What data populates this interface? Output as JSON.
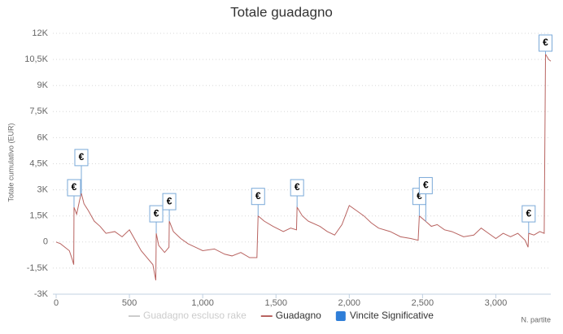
{
  "chart_data": {
    "type": "line",
    "title": "Totale guadagno",
    "y_axis_label": "Totale cumulativo (EUR)",
    "x_axis_label": "N. partite",
    "xlim": [
      0,
      3375
    ],
    "ylim": [
      -3000,
      12000
    ],
    "xticks": [
      0,
      500,
      {
        "value": 1000,
        "label": "1,000"
      },
      {
        "value": 1500,
        "label": "1,500"
      },
      {
        "value": 2000,
        "label": "2,000"
      },
      {
        "value": 2500,
        "label": "2,500"
      },
      {
        "value": 3000,
        "label": "3,000"
      }
    ],
    "yticks": [
      {
        "value": -3000,
        "label": "-3K"
      },
      {
        "value": -1500,
        "label": "-1,5K"
      },
      0,
      {
        "value": 1500,
        "label": "1,5K"
      },
      {
        "value": 3000,
        "label": "3K"
      },
      {
        "value": 4500,
        "label": "4,5K"
      },
      {
        "value": 6000,
        "label": "6K"
      },
      {
        "value": 7500,
        "label": "7,5K"
      },
      {
        "value": 9000,
        "label": "9K"
      },
      {
        "value": 10500,
        "label": "10,5K"
      },
      {
        "value": 12000,
        "label": "12K"
      }
    ],
    "grid": true,
    "series": [
      {
        "name": "Guadagno escluso rake",
        "color": "#cccccc",
        "visible": false,
        "x": [],
        "values": []
      },
      {
        "name": "Guadagno",
        "color": "#b86360",
        "visible": true,
        "x": [
          0,
          30,
          60,
          90,
          110,
          120,
          122,
          140,
          160,
          172,
          190,
          220,
          260,
          300,
          340,
          400,
          450,
          500,
          540,
          580,
          620,
          660,
          680,
          683,
          700,
          740,
          770,
          772,
          800,
          850,
          900,
          950,
          1000,
          1080,
          1150,
          1200,
          1260,
          1320,
          1370,
          1378,
          1420,
          1480,
          1550,
          1600,
          1640,
          1644,
          1680,
          1720,
          1800,
          1850,
          1900,
          1950,
          2000,
          2050,
          2100,
          2150,
          2200,
          2280,
          2350,
          2420,
          2470,
          2478,
          2520,
          2560,
          2600,
          2650,
          2700,
          2780,
          2850,
          2900,
          2950,
          3000,
          3050,
          3100,
          3150,
          3200,
          3220,
          3224,
          3260,
          3300,
          3330,
          3339,
          3360,
          3375
        ],
        "values": [
          0,
          -100,
          -300,
          -500,
          -1000,
          -1300,
          2000,
          1600,
          2400,
          2800,
          2200,
          1800,
          1200,
          900,
          500,
          600,
          300,
          700,
          100,
          -500,
          -900,
          -1300,
          -2200,
          500,
          -200,
          -600,
          -300,
          1200,
          600,
          200,
          -100,
          -300,
          -500,
          -400,
          -700,
          -800,
          -600,
          -900,
          -900,
          1500,
          1200,
          900,
          600,
          800,
          700,
          2000,
          1500,
          1200,
          900,
          600,
          400,
          1000,
          2100,
          1800,
          1500,
          1100,
          800,
          600,
          300,
          200,
          100,
          1500,
          1200,
          900,
          1000,
          700,
          600,
          300,
          400,
          800,
          500,
          200,
          500,
          300,
          500,
          100,
          -300,
          500,
          400,
          600,
          500,
          10800,
          10500,
          10400
        ]
      }
    ],
    "flags": {
      "name": "Vincite Significative",
      "color": "#2f7ed8",
      "label": "€",
      "x": [
        122,
        172,
        683,
        772,
        1378,
        1644,
        2478,
        2522,
        3224,
        3339
      ]
    }
  }
}
